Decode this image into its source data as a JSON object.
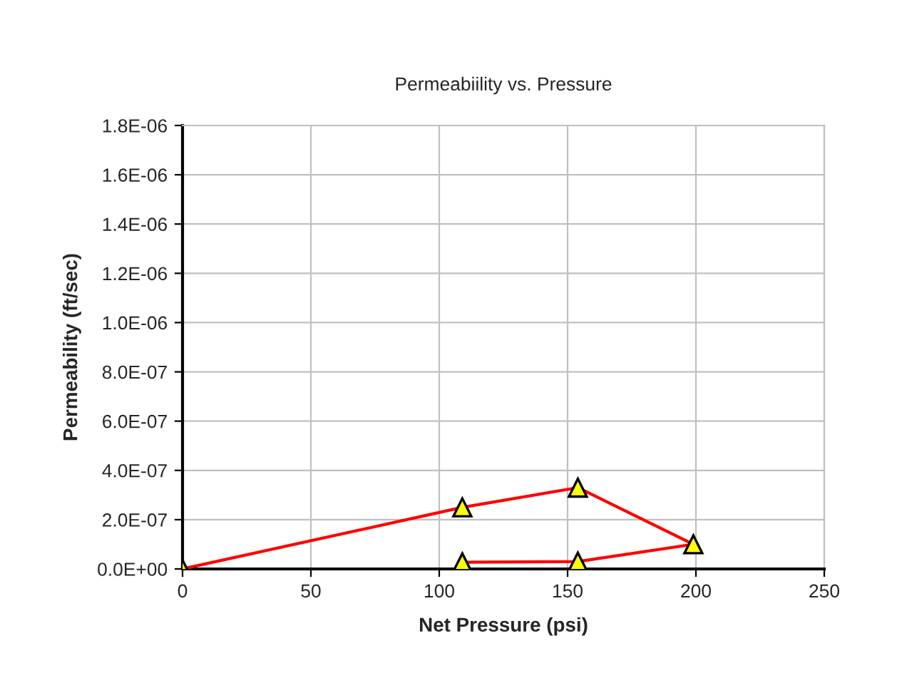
{
  "chart_data": {
    "type": "line",
    "title": "Permeabiility vs. Pressure",
    "xlabel": "Net Pressure (psi)",
    "ylabel": "Permeability (ft/sec)",
    "series": [
      {
        "color": "#ff0000",
        "x": [
          0,
          109,
          154,
          199,
          154,
          109
        ],
        "values": [
          0,
          2.5e-07,
          3.3e-07,
          1e-07,
          3e-08,
          2.7e-08
        ]
      }
    ],
    "xlim": [
      0,
      250
    ],
    "xticks": [
      0,
      50,
      100,
      150,
      200,
      250
    ],
    "ylim": [
      0,
      1.8e-06
    ],
    "yticks": [
      {
        "value": 0,
        "label": "0.0E+00"
      },
      {
        "value": 2e-07,
        "label": "2.0E-07"
      },
      {
        "value": 4e-07,
        "label": "4.0E-07"
      },
      {
        "value": 6e-07,
        "label": "6.0E-07"
      },
      {
        "value": 8e-07,
        "label": "8.0E-07"
      },
      {
        "value": 1e-06,
        "label": "1.0E-06"
      },
      {
        "value": 1.2e-06,
        "label": "1.2E-06"
      },
      {
        "value": 1.4e-06,
        "label": "1.4E-06"
      },
      {
        "value": 1.6e-06,
        "label": "1.6E-06"
      },
      {
        "value": 1.8e-06,
        "label": "1.8E-06"
      }
    ],
    "grid": true,
    "marker": "triangle",
    "line_style": "solid",
    "legend": false
  }
}
